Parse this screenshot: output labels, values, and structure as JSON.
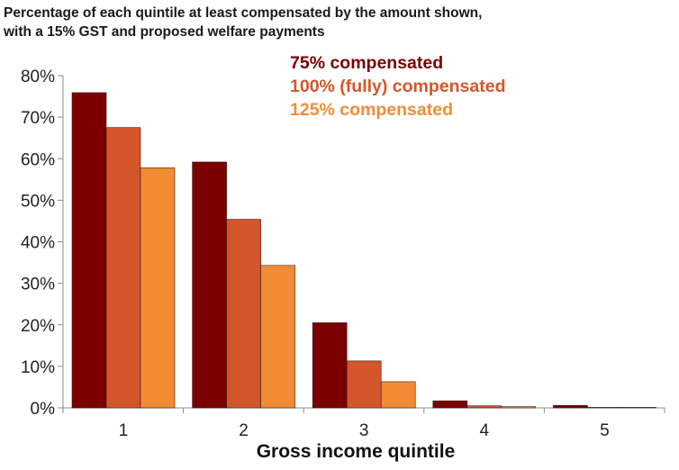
{
  "chart_data": {
    "type": "bar",
    "title": "Percentage of each quintile at least compensated by the amount shown,",
    "subtitle": "with a 15% GST and proposed welfare payments",
    "xlabel": "Gross income quintile",
    "ylabel": "",
    "categories": [
      "1",
      "2",
      "3",
      "4",
      "5"
    ],
    "ylim": [
      0,
      80
    ],
    "yticks": [
      "0%",
      "10%",
      "20%",
      "30%",
      "40%",
      "50%",
      "60%",
      "70%",
      "80%"
    ],
    "grid": false,
    "legend_position": "top-center",
    "series": [
      {
        "name": "75% compensated",
        "color": "#7b0000",
        "values": [
          75.9,
          59.2,
          20.5,
          1.7,
          0.6
        ]
      },
      {
        "name": "100% (fully) compensated",
        "color": "#d4562b",
        "values": [
          67.5,
          45.4,
          11.3,
          0.5,
          0.1
        ]
      },
      {
        "name": "125% compensated",
        "color": "#f28c34",
        "values": [
          57.8,
          34.3,
          6.3,
          0.3,
          0.1
        ]
      }
    ]
  }
}
